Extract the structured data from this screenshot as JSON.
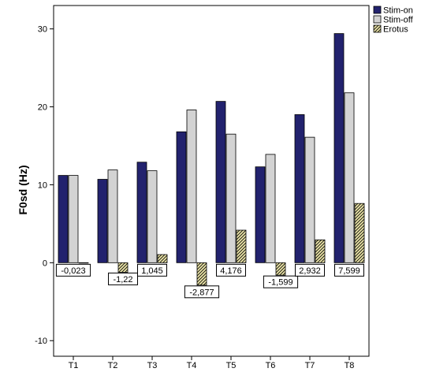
{
  "chart_data": {
    "type": "bar",
    "categories": [
      "T1",
      "T2",
      "T3",
      "T4",
      "T5",
      "T6",
      "T7",
      "T8"
    ],
    "series": [
      {
        "name": "Stim-on",
        "color": "#22226e",
        "pattern": "solid",
        "values": [
          11.2,
          10.7,
          12.9,
          16.8,
          20.7,
          12.3,
          19.0,
          29.4
        ]
      },
      {
        "name": "Stim-off",
        "color": "#d3d3d3",
        "pattern": "solid",
        "values": [
          11.2,
          11.9,
          11.8,
          19.6,
          16.5,
          13.9,
          16.1,
          21.8
        ]
      },
      {
        "name": "Erotus",
        "color": "#e9e2a6",
        "pattern": "hatched",
        "values": [
          -0.023,
          -1.22,
          1.045,
          -2.877,
          4.176,
          -1.599,
          2.932,
          7.599
        ]
      }
    ],
    "data_labels": [
      "-0,023",
      "-1,22",
      "1,045",
      "-2,877",
      "4,176",
      "-1,599",
      "2,932",
      "7,599"
    ],
    "ylabel": "F0sd (Hz)",
    "xlabel": "",
    "ylim": [
      -12,
      33
    ],
    "yticks": [
      "-10",
      "0",
      "10",
      "20",
      "30"
    ],
    "legend_position": "top-right",
    "grid": false
  }
}
